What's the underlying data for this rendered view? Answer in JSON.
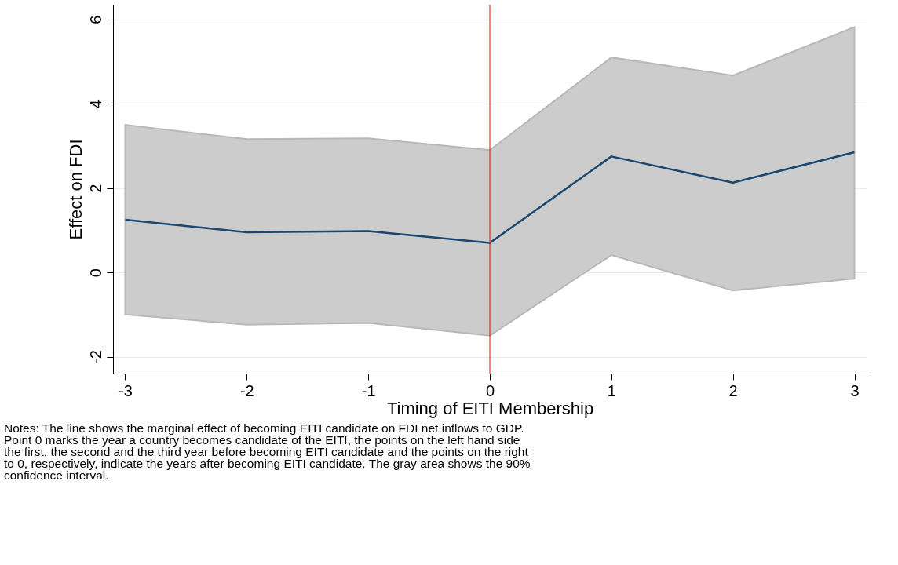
{
  "chart_data": {
    "type": "line",
    "x": [
      -3,
      -2,
      -1,
      0,
      1,
      2,
      3
    ],
    "series": [
      {
        "color": "#1a476f",
        "values": [
          1.25,
          0.95,
          0.98,
          0.7,
          2.75,
          2.13,
          2.85
        ],
        "lower": [
          -1.0,
          -1.24,
          -1.2,
          -1.5,
          0.41,
          -0.43,
          -0.15
        ],
        "upper": [
          3.5,
          3.16,
          3.18,
          2.9,
          5.1,
          4.67,
          5.82
        ]
      }
    ],
    "xlim": [
      -3.1,
      3.1
    ],
    "xticks": [
      -3,
      -2,
      -1,
      0,
      1,
      2,
      3
    ],
    "ylim": [
      -2.4,
      6.35
    ],
    "yticks": [
      -2,
      0,
      2,
      4,
      6
    ],
    "xlabel": "Timing of EITI Membership",
    "ylabel": "Effect on FDI",
    "ref_lines": [
      {
        "axis": "x",
        "value": 0,
        "color": "#ff0000"
      }
    ],
    "grid": "y",
    "marker": "none",
    "line_style": "solid",
    "annotations": [
      "Notes: The line shows the marginal effect of becoming EITI candidate on FDI net inflows to GDP.\nPoint 0 marks the year a country becomes candidate of the EITI, the points on the left hand side\nthe first, the second and the third year before becoming EITI candidate and the points on the right\nto 0, respectively, indicate the years after becoming EITI candidate. The gray area shows the 90%\nconfidence interval."
    ]
  }
}
